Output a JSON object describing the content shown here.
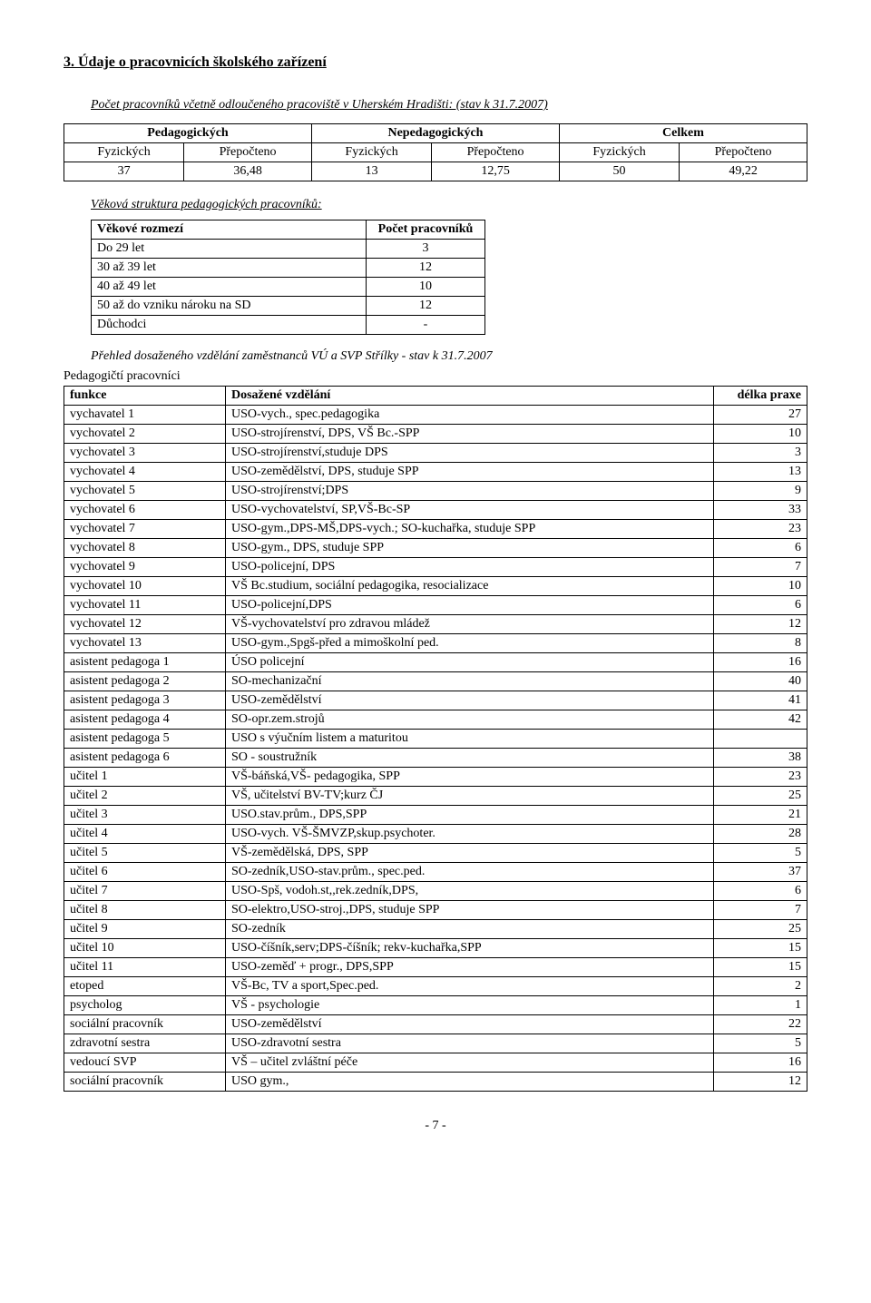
{
  "heading": "3. Údaje o pracovnicích školského zařízení",
  "para1": "Počet pracovníků včetně odloučeného pracoviště v Uherském Hradišti: (stav k 31.7.2007)",
  "t1": {
    "h1": "Pedagogických",
    "h2": "Nepedagogických",
    "h3": "Celkem",
    "sh": [
      "Fyzických",
      "Přepočteno",
      "Fyzických",
      "Přepočteno",
      "Fyzických",
      "Přepočteno"
    ],
    "row": [
      "37",
      "36,48",
      "13",
      "12,75",
      "50",
      "49,22"
    ]
  },
  "para2": "Věková struktura pedagogických pracovníků:",
  "t2": {
    "h": [
      "Věkové rozmezí",
      "Počet pracovníků"
    ],
    "rows": [
      [
        "Do 29 let",
        "3"
      ],
      [
        "30 až 39 let",
        "12"
      ],
      [
        "40 až 49 let",
        "10"
      ],
      [
        "50 až do vzniku nároku na SD",
        "12"
      ],
      [
        "Důchodci",
        "-"
      ]
    ]
  },
  "para3": "Přehled dosaženého vzdělání zaměstnanců VÚ a SVP Střílky - stav k 31.7.2007",
  "para4": "Pedagogičtí pracovníci",
  "t3": {
    "h": [
      "funkce",
      "Dosažené vzdělání",
      "délka praxe"
    ],
    "rows": [
      [
        "vychavatel 1",
        "USO-vych., spec.pedagogika",
        "27"
      ],
      [
        "vychovatel 2",
        "USO-strojírenství, DPS, VŠ Bc.-SPP",
        "10"
      ],
      [
        "vychovatel 3",
        "USO-strojírenství,studuje DPS",
        "3"
      ],
      [
        "vychovatel 4",
        "USO-zemědělství, DPS, studuje SPP",
        "13"
      ],
      [
        "vychovatel 5",
        "USO-strojírenství;DPS",
        "9"
      ],
      [
        "vychovatel 6",
        "USO-vychovatelství, SP,VŠ-Bc-SP",
        "33"
      ],
      [
        "vychovatel 7",
        "USO-gym.,DPS-MŠ,DPS-vych.; SO-kuchařka, studuje SPP",
        "23"
      ],
      [
        "vychovatel 8",
        "USO-gym., DPS, studuje SPP",
        "6"
      ],
      [
        "vychovatel 9",
        "USO-policejní, DPS",
        "7"
      ],
      [
        "vychovatel 10",
        "VŠ Bc.studium, sociální pedagogika, resocializace",
        "10"
      ],
      [
        "vychovatel 11",
        "USO-policejní,DPS",
        "6"
      ],
      [
        "vychovatel 12",
        "VŠ-vychovatelství pro zdravou mládež",
        "12"
      ],
      [
        "vychovatel 13",
        "USO-gym.,Spgš-před a mimoškolní ped.",
        "8"
      ],
      [
        "asistent pedagoga 1",
        "ÚSO policejní",
        "16"
      ],
      [
        "asistent pedagoga 2",
        "SO-mechanizační",
        "40"
      ],
      [
        "asistent pedagoga 3",
        "USO-zemědělství",
        "41"
      ],
      [
        "asistent pedagoga 4",
        "SO-opr.zem.strojů",
        "42"
      ],
      [
        "asistent pedagoga 5",
        "USO s výučním listem a maturitou",
        ""
      ],
      [
        "asistent pedagoga 6",
        "SO - soustružník",
        "38"
      ],
      [
        "učitel 1",
        "VŠ-báňská,VŠ- pedagogika, SPP",
        "23"
      ],
      [
        "učitel 2",
        "VŠ, učitelství BV-TV;kurz ČJ",
        "25"
      ],
      [
        "učitel 3",
        "USO.stav.prům., DPS,SPP",
        "21"
      ],
      [
        "učitel 4",
        "USO-vych. VŠ-ŠMVZP,skup.psychoter.",
        "28"
      ],
      [
        "učitel 5",
        "VŠ-zemědělská, DPS, SPP",
        "5"
      ],
      [
        "učitel 6",
        "SO-zedník,USO-stav.prům., spec.ped.",
        "37"
      ],
      [
        "učitel 7",
        "USO-Spš, vodoh.st,,rek.zedník,DPS,",
        "6"
      ],
      [
        "učitel 8",
        "SO-elektro,USO-stroj.,DPS, studuje SPP",
        "7"
      ],
      [
        "učitel 9",
        "SO-zedník",
        "25"
      ],
      [
        "učitel 10",
        "USO-číšník,serv;DPS-číšník; rekv-kuchařka,SPP",
        "15"
      ],
      [
        "učitel 11",
        "USO-zeměď + progr., DPS,SPP",
        "15"
      ],
      [
        "etoped",
        "VŠ-Bc, TV a sport,Spec.ped.",
        "2"
      ],
      [
        "psycholog",
        "VŠ - psychologie",
        "1"
      ],
      [
        "sociální pracovník",
        "USO-zemědělství",
        "22"
      ],
      [
        "zdravotní sestra",
        "USO-zdravotní sestra",
        "5"
      ],
      [
        "vedoucí SVP",
        "VŠ – učitel zvláštní péče",
        "16"
      ],
      [
        "sociální pracovník",
        "USO gym.,",
        "12"
      ]
    ]
  },
  "footer": "- 7 -"
}
